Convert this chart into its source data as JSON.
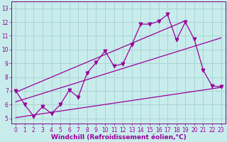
{
  "xlabel": "Windchill (Refroidissement éolien,°C)",
  "bg_color": "#c8ecec",
  "grid_color": "#aad4d4",
  "line_color": "#990099",
  "spine_color": "#800080",
  "xlim": [
    -0.5,
    23.5
  ],
  "ylim": [
    4.6,
    13.5
  ],
  "xticks": [
    0,
    1,
    2,
    3,
    4,
    5,
    6,
    7,
    8,
    9,
    10,
    11,
    12,
    13,
    14,
    15,
    16,
    17,
    18,
    19,
    20,
    21,
    22,
    23
  ],
  "yticks": [
    5,
    6,
    7,
    8,
    9,
    10,
    11,
    12,
    13
  ],
  "data_x": [
    0,
    1,
    2,
    3,
    4,
    5,
    6,
    7,
    8,
    9,
    10,
    11,
    12,
    13,
    14,
    15,
    16,
    17,
    18,
    19,
    20,
    21,
    22,
    23
  ],
  "data_y": [
    7.0,
    6.0,
    5.15,
    5.85,
    5.35,
    6.0,
    7.05,
    6.55,
    8.3,
    9.05,
    9.9,
    8.8,
    8.95,
    10.35,
    11.85,
    11.85,
    12.05,
    12.55,
    10.7,
    12.0,
    10.75,
    8.5,
    7.35,
    7.3
  ],
  "line1_x": [
    0,
    19
  ],
  "line1_y": [
    6.9,
    12.1
  ],
  "line2_x": [
    0,
    23
  ],
  "line2_y": [
    6.2,
    10.85
  ],
  "line3_x": [
    0,
    23
  ],
  "line3_y": [
    5.05,
    7.25
  ],
  "tick_fontsize": 5.5,
  "xlabel_fontsize": 6.5
}
